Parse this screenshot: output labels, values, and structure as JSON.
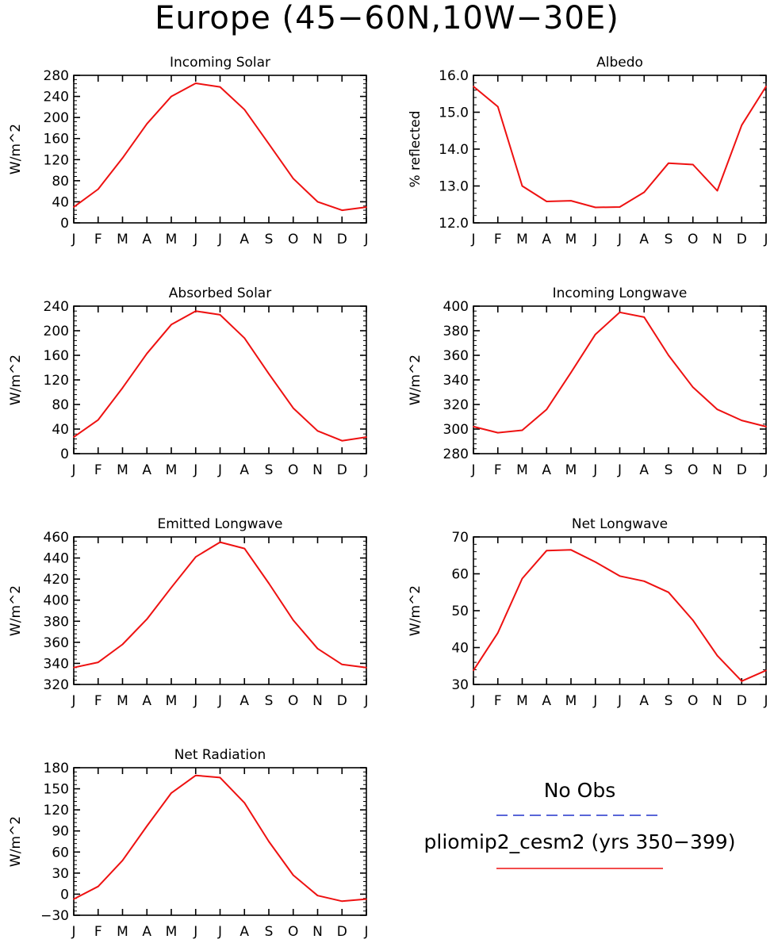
{
  "title": "Europe (45−60N,10W−30E)",
  "colors": {
    "model_line": "#ee1111",
    "obs_line": "#2233cc",
    "axis": "#000000"
  },
  "chart_data": [
    {
      "type": "line",
      "title": "Incoming Solar",
      "ylabel": "W/m^2",
      "ylim": [
        0,
        280
      ],
      "yticks": [
        0,
        40,
        80,
        120,
        160,
        200,
        240,
        280
      ],
      "ytick_labels": [
        "0",
        "40",
        "80",
        "120",
        "160",
        "200",
        "240",
        "280"
      ],
      "categories": [
        "J",
        "F",
        "M",
        "A",
        "M",
        "J",
        "J",
        "A",
        "S",
        "O",
        "N",
        "D",
        "J"
      ],
      "series": [
        {
          "name": "pliomip2_cesm2 (yrs 350−399)",
          "values": [
            30,
            64,
            123,
            188,
            240,
            265,
            258,
            215,
            150,
            84,
            40,
            24,
            30
          ]
        }
      ]
    },
    {
      "type": "line",
      "title": "Albedo",
      "ylabel": "% reflected",
      "ylim": [
        12.0,
        16.0
      ],
      "yticks": [
        12.0,
        13.0,
        14.0,
        15.0,
        16.0
      ],
      "ytick_labels": [
        "12.0",
        "13.0",
        "14.0",
        "15.0",
        "16.0"
      ],
      "categories": [
        "J",
        "F",
        "M",
        "A",
        "M",
        "J",
        "J",
        "A",
        "S",
        "O",
        "N",
        "D",
        "J"
      ],
      "series": [
        {
          "name": "pliomip2_cesm2 (yrs 350−399)",
          "values": [
            15.7,
            15.15,
            13.0,
            12.58,
            12.6,
            12.42,
            12.43,
            12.83,
            13.62,
            13.58,
            12.87,
            14.65,
            15.7
          ]
        }
      ]
    },
    {
      "type": "line",
      "title": "Absorbed Solar",
      "ylabel": "W/m^2",
      "ylim": [
        0,
        240
      ],
      "yticks": [
        0,
        40,
        80,
        120,
        160,
        200,
        240
      ],
      "ytick_labels": [
        "0",
        "40",
        "80",
        "120",
        "160",
        "200",
        "240"
      ],
      "categories": [
        "J",
        "F",
        "M",
        "A",
        "M",
        "J",
        "J",
        "A",
        "S",
        "O",
        "N",
        "D",
        "J"
      ],
      "series": [
        {
          "name": "pliomip2_cesm2 (yrs 350−399)",
          "values": [
            27,
            55,
            107,
            163,
            210,
            232,
            226,
            188,
            130,
            74,
            37,
            21,
            27
          ]
        }
      ]
    },
    {
      "type": "line",
      "title": "Incoming Longwave",
      "ylabel": "W/m^2",
      "ylim": [
        280,
        400
      ],
      "yticks": [
        280,
        300,
        320,
        340,
        360,
        380,
        400
      ],
      "ytick_labels": [
        "280",
        "300",
        "320",
        "340",
        "360",
        "380",
        "400"
      ],
      "categories": [
        "J",
        "F",
        "M",
        "A",
        "M",
        "J",
        "J",
        "A",
        "S",
        "O",
        "N",
        "D",
        "J"
      ],
      "series": [
        {
          "name": "pliomip2_cesm2 (yrs 350−399)",
          "values": [
            302,
            297,
            299,
            316,
            346,
            377,
            395,
            391,
            360,
            334,
            316,
            307,
            302
          ]
        }
      ]
    },
    {
      "type": "line",
      "title": "Emitted Longwave",
      "ylabel": "W/m^2",
      "ylim": [
        320,
        460
      ],
      "yticks": [
        320,
        340,
        360,
        380,
        400,
        420,
        440,
        460
      ],
      "ytick_labels": [
        "320",
        "340",
        "360",
        "380",
        "400",
        "420",
        "440",
        "460"
      ],
      "categories": [
        "J",
        "F",
        "M",
        "A",
        "M",
        "J",
        "J",
        "A",
        "S",
        "O",
        "N",
        "D",
        "J"
      ],
      "series": [
        {
          "name": "pliomip2_cesm2 (yrs 350−399)",
          "values": [
            336,
            341,
            358,
            382,
            412,
            441,
            455,
            449,
            416,
            381,
            354,
            339,
            336
          ]
        }
      ]
    },
    {
      "type": "line",
      "title": "Net Longwave",
      "ylabel": "W/m^2",
      "ylim": [
        30,
        70
      ],
      "yticks": [
        30,
        40,
        50,
        60,
        70
      ],
      "ytick_labels": [
        "30",
        "40",
        "50",
        "60",
        "70"
      ],
      "categories": [
        "J",
        "F",
        "M",
        "A",
        "M",
        "J",
        "J",
        "A",
        "S",
        "O",
        "N",
        "D",
        "J"
      ],
      "series": [
        {
          "name": "pliomip2_cesm2 (yrs 350−399)",
          "values": [
            33.8,
            44,
            58.7,
            66.3,
            66.5,
            63.2,
            59.4,
            58,
            55,
            47.4,
            37.8,
            30.9,
            33.8
          ]
        }
      ]
    },
    {
      "type": "line",
      "title": "Net Radiation",
      "ylabel": "W/m^2",
      "ylim": [
        -30,
        180
      ],
      "yticks": [
        -30,
        0,
        30,
        60,
        90,
        120,
        150,
        180
      ],
      "ytick_labels": [
        "−30",
        "0",
        "30",
        "60",
        "90",
        "120",
        "150",
        "180"
      ],
      "categories": [
        "J",
        "F",
        "M",
        "A",
        "M",
        "J",
        "J",
        "A",
        "S",
        "O",
        "N",
        "D",
        "J"
      ],
      "series": [
        {
          "name": "pliomip2_cesm2 (yrs 350−399)",
          "values": [
            -7,
            11,
            48,
            97,
            144,
            169,
            166,
            130,
            75,
            27,
            -2,
            -10,
            -7
          ]
        }
      ]
    }
  ],
  "legend": {
    "no_obs_label": "No Obs",
    "model_label": "pliomip2_cesm2 (yrs 350−399)"
  }
}
